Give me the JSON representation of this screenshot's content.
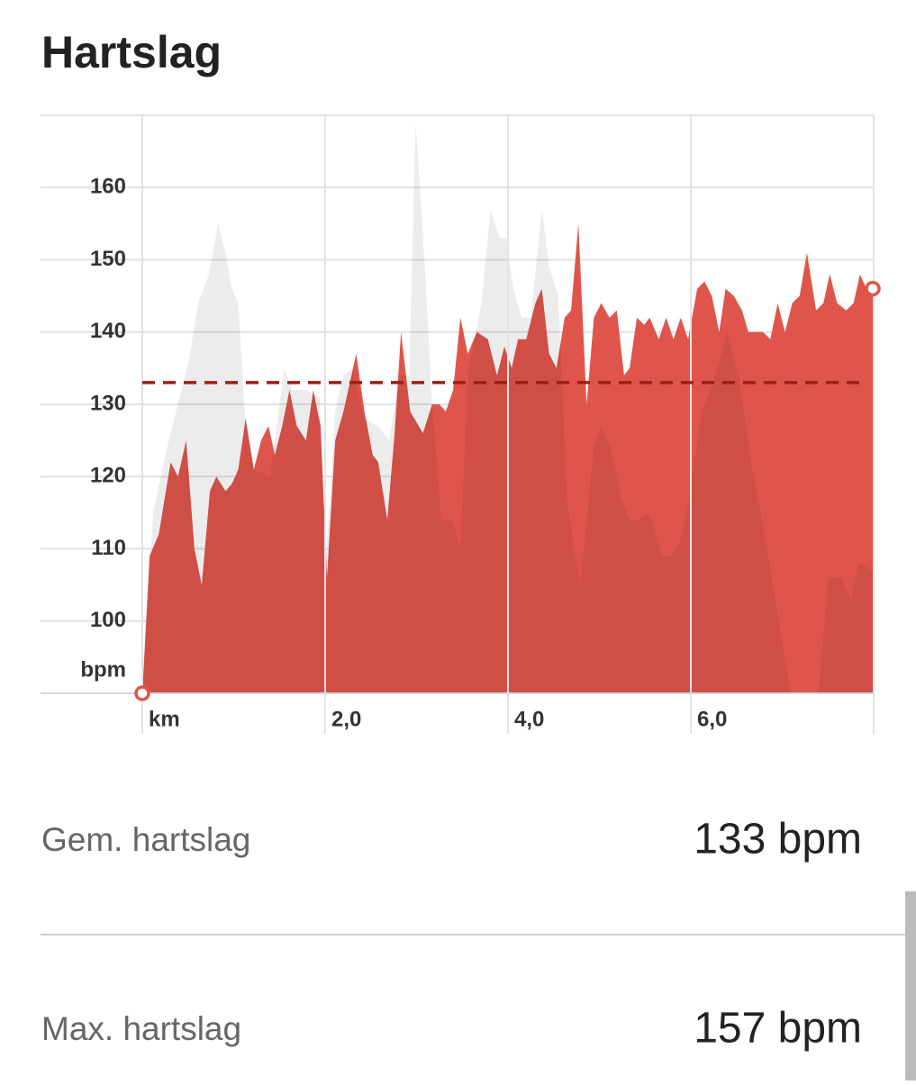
{
  "chart_data": {
    "type": "area",
    "title": "Hartslag",
    "y_label": "bpm",
    "xlim": [
      0,
      8
    ],
    "ylim": [
      90,
      170
    ],
    "xticks": [
      {
        "value": 0,
        "label": "km"
      },
      {
        "value": 2,
        "label": "2,0"
      },
      {
        "value": 4,
        "label": "4,0"
      },
      {
        "value": 6,
        "label": "6,0"
      }
    ],
    "yticks": [
      100,
      110,
      120,
      130,
      140,
      150,
      160
    ],
    "grid": true,
    "average": 133,
    "average_color": "#9b1f17",
    "series": [
      {
        "color": "#e0554b",
        "x": [
          0.0,
          0.08,
          0.18,
          0.31,
          0.39,
          0.48,
          0.57,
          0.65,
          0.74,
          0.81,
          0.91,
          0.98,
          1.05,
          1.13,
          1.22,
          1.3,
          1.38,
          1.45,
          1.53,
          1.61,
          1.69,
          1.79,
          1.87,
          1.95,
          2.02,
          2.11,
          2.2,
          2.34,
          2.43,
          2.52,
          2.58,
          2.68,
          2.76,
          2.83,
          2.93,
          3.07,
          3.17,
          3.25,
          3.32,
          3.4,
          3.48,
          3.56,
          3.66,
          3.78,
          3.88,
          3.96,
          4.04,
          4.11,
          4.2,
          4.3,
          4.37,
          4.45,
          4.53,
          4.62,
          4.69,
          4.77,
          4.86,
          4.94,
          5.02,
          5.11,
          5.19,
          5.27,
          5.33,
          5.41,
          5.49,
          5.55,
          5.65,
          5.73,
          5.81,
          5.89,
          5.97,
          6.07,
          6.15,
          6.23,
          6.31,
          6.38,
          6.47,
          6.56,
          6.63,
          6.79,
          6.87,
          6.95,
          7.03,
          7.11,
          7.19,
          7.27,
          7.37,
          7.45,
          7.52,
          7.6,
          7.7,
          7.78,
          7.85,
          7.92,
          7.99
        ],
        "values": [
          90,
          109,
          112,
          122,
          120,
          125,
          110,
          105,
          118,
          120,
          118,
          119,
          121,
          128,
          121,
          125,
          127,
          123,
          127,
          132,
          127,
          125,
          132,
          127,
          106,
          125,
          129,
          137,
          129,
          123,
          122,
          114,
          126,
          140,
          129,
          126,
          130,
          130,
          129,
          132,
          142,
          137,
          140,
          139,
          134,
          138,
          135,
          139,
          139,
          144,
          146,
          137,
          135,
          142,
          143,
          155,
          130,
          142,
          144,
          142,
          143,
          134,
          135,
          142,
          141,
          142,
          139,
          142,
          139,
          142,
          139,
          146,
          147,
          145,
          140,
          146,
          145,
          143,
          140,
          140,
          139,
          144,
          140,
          144,
          145,
          151,
          143,
          144,
          148,
          144,
          143,
          144,
          148,
          146,
          146
        ]
      },
      {
        "color": "rgba(0,0,0,0.075)",
        "x": [
          0.0,
          0.12,
          0.27,
          0.41,
          0.51,
          0.61,
          0.73,
          0.83,
          0.91,
          0.98,
          1.05,
          1.12,
          1.22,
          1.4,
          1.55,
          1.64,
          1.79,
          1.94,
          2.01,
          2.11,
          2.2,
          2.3,
          2.43,
          2.58,
          2.7,
          2.82,
          2.92,
          2.99,
          3.09,
          3.17,
          3.27,
          3.39,
          3.48,
          3.56,
          3.71,
          3.81,
          3.91,
          3.98,
          4.06,
          4.15,
          4.25,
          4.37,
          4.45,
          4.55,
          4.65,
          4.79,
          4.94,
          5.02,
          5.12,
          5.24,
          5.33,
          5.43,
          5.51,
          5.58,
          5.68,
          5.78,
          5.88,
          5.97,
          6.12,
          6.27,
          6.4,
          6.52,
          6.66,
          6.81,
          6.96,
          7.09,
          7.4,
          7.5,
          7.65,
          7.75,
          7.84,
          7.99
        ],
        "values": [
          90,
          115,
          124,
          131,
          136,
          144,
          148,
          155,
          151,
          146,
          144,
          129,
          121,
          120,
          135,
          132,
          132,
          131,
          109,
          129,
          134,
          135,
          128,
          127,
          125,
          134,
          134,
          169,
          149,
          130,
          114,
          114,
          110,
          134,
          144,
          157,
          153,
          153,
          146,
          142,
          142,
          157,
          149,
          145,
          116,
          105,
          124,
          127,
          124,
          117,
          114,
          114,
          115,
          114,
          109,
          109,
          111,
          116,
          129,
          134,
          140,
          134,
          122,
          112,
          100,
          90,
          90,
          106,
          106,
          103,
          108,
          107
        ]
      }
    ]
  },
  "stats": [
    {
      "label": "Gem. hartslag",
      "value": "133 bpm"
    },
    {
      "label": "Max. hartslag",
      "value": "157 bpm"
    }
  ]
}
